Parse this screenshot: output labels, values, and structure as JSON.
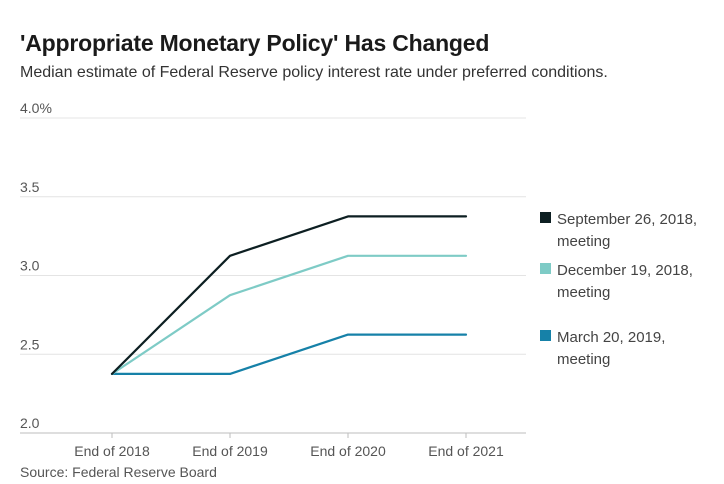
{
  "header": {
    "title": "'Appropriate Monetary Policy' Has Changed",
    "subtitle": "Median estimate of Federal Reserve policy interest rate under preferred conditions."
  },
  "footer": {
    "source": "Source: Federal Reserve Board"
  },
  "legend": [
    {
      "line1": "September 26, 2018,",
      "line2": "meeting"
    },
    {
      "line1": "December 19, 2018,",
      "line2": "meeting"
    },
    {
      "line1": "March 20, 2019,",
      "line2": "meeting"
    }
  ],
  "chart_data": {
    "type": "line",
    "title": "'Appropriate Monetary Policy' Has Changed",
    "subtitle": "Median estimate of Federal Reserve policy interest rate under preferred conditions.",
    "categories": [
      "End of 2018",
      "End of 2019",
      "End of 2020",
      "End of 2021"
    ],
    "yticks": [
      "4.0%",
      "3.5",
      "3.0",
      "2.5",
      "2.0"
    ],
    "ylim": [
      2.0,
      4.0
    ],
    "grid": true,
    "legend_position": "right",
    "series": [
      {
        "name": "September 26, 2018, meeting",
        "color": "#0d1f22",
        "values": [
          2.375,
          3.125,
          3.375,
          3.375
        ]
      },
      {
        "name": "December 19, 2018, meeting",
        "color": "#7ecbc6",
        "values": [
          2.375,
          2.875,
          3.125,
          3.125
        ]
      },
      {
        "name": "March 20, 2019, meeting",
        "color": "#1681a8",
        "values": [
          2.375,
          2.375,
          2.625,
          2.625
        ]
      }
    ]
  }
}
